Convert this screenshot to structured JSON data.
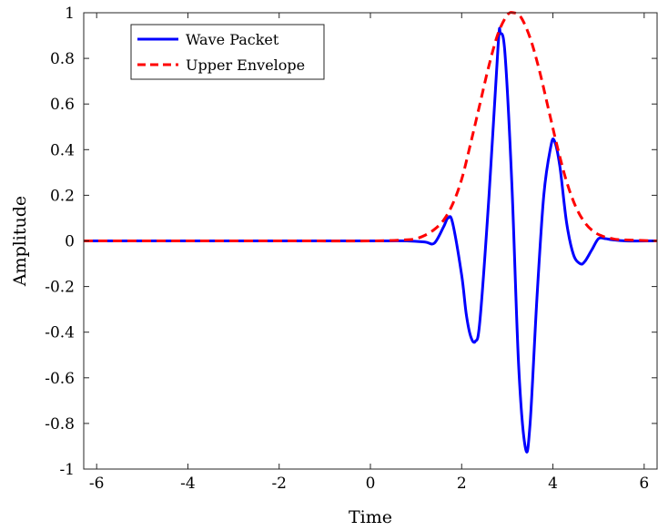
{
  "chart_data": {
    "type": "line",
    "xlabel": "Time",
    "ylabel": "Amplitude",
    "xlim": [
      -6.2832,
      6.2832
    ],
    "ylim": [
      -1,
      1
    ],
    "xticks": [
      -6,
      -4,
      -2,
      0,
      2,
      4,
      6
    ],
    "xtick_labels": [
      "-6",
      "-4",
      "-2",
      "0",
      "2",
      "4",
      "6"
    ],
    "yticks": [
      -1,
      -0.8,
      -0.6,
      -0.4,
      -0.2,
      0,
      0.2,
      0.4,
      0.6,
      0.8,
      1
    ],
    "ytick_labels": [
      "-1",
      "-0.8",
      "-0.6",
      "-0.4",
      "-0.2",
      "0",
      "0.2",
      "0.4",
      "0.6",
      "0.8",
      "1"
    ],
    "grid": false,
    "legend_position": "top-left",
    "series": [
      {
        "name": "Wave Packet",
        "color": "#0000ff",
        "style": "solid",
        "x": [
          -6.2832,
          -4.0,
          -2.0,
          0.0,
          0.8,
          1.2,
          1.4,
          1.6,
          1.7,
          1.8,
          2.0,
          2.1,
          2.2,
          2.3,
          2.4,
          2.6,
          2.8,
          2.85,
          2.95,
          3.1,
          3.25,
          3.4,
          3.5,
          3.65,
          3.8,
          3.95,
          4.03,
          4.15,
          4.3,
          4.45,
          4.6,
          4.7,
          4.85,
          5.0,
          5.15,
          5.3,
          5.6,
          6.2832
        ],
        "y": [
          0,
          0,
          0,
          0,
          0,
          -0.005,
          -0.01,
          0.06,
          0.1,
          0.08,
          -0.15,
          -0.32,
          -0.42,
          -0.44,
          -0.35,
          0.2,
          0.86,
          0.91,
          0.82,
          0.25,
          -0.55,
          -0.91,
          -0.8,
          -0.25,
          0.2,
          0.41,
          0.44,
          0.33,
          0.08,
          -0.06,
          -0.1,
          -0.09,
          -0.04,
          0.01,
          0.01,
          0.005,
          0,
          0
        ]
      },
      {
        "name": "Upper Envelope",
        "color": "#ff0000",
        "style": "dashed",
        "x": [
          -6.2832,
          -4.0,
          -2.0,
          0.0,
          0.8,
          1.0,
          1.2,
          1.4,
          1.6,
          1.8,
          2.0,
          2.2,
          2.4,
          2.6,
          2.8,
          3.0,
          3.14,
          3.3,
          3.5,
          3.7,
          3.9,
          4.1,
          4.3,
          4.5,
          4.7,
          4.9,
          5.1,
          5.3,
          5.5,
          6.2832
        ],
        "y": [
          0,
          0,
          0,
          0,
          0.005,
          0.01,
          0.025,
          0.05,
          0.09,
          0.16,
          0.27,
          0.43,
          0.6,
          0.77,
          0.91,
          0.99,
          1.0,
          0.98,
          0.89,
          0.75,
          0.58,
          0.41,
          0.26,
          0.15,
          0.08,
          0.04,
          0.02,
          0.01,
          0.005,
          0
        ]
      }
    ]
  }
}
